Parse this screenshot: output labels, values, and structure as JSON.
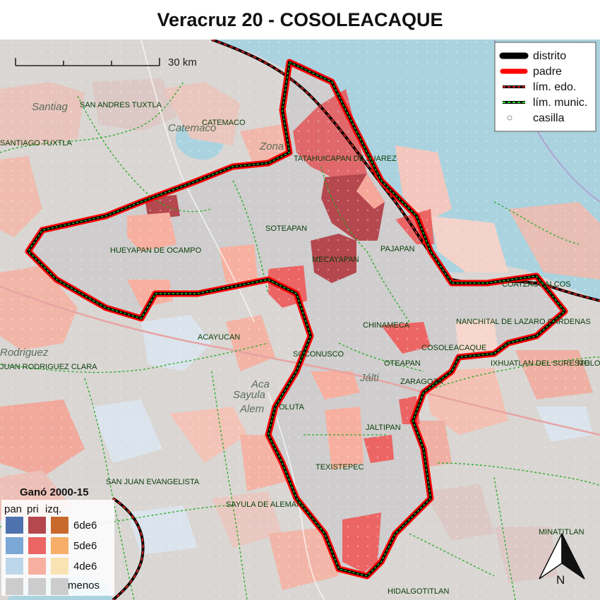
{
  "title": "Veracruz 20 - COSOLEACAQUE",
  "scale_bar": {
    "label": "30 km"
  },
  "legend": {
    "items": [
      {
        "label": "distrito",
        "color": "#000000"
      },
      {
        "label": "padre",
        "color": "#ff0000"
      },
      {
        "label": "lím. edo.",
        "color": "#cc0000"
      },
      {
        "label": "lím. munic.",
        "color": "#22cc22"
      },
      {
        "label": "casilla",
        "color": "#ffffff"
      }
    ]
  },
  "win_legend": {
    "title": "Ganó 2000-15",
    "columns": [
      "pan",
      "pri",
      "izq."
    ],
    "rows": [
      {
        "label": "6de6",
        "colors": [
          "#4d72ae",
          "#b5474e",
          "#c86a2c"
        ]
      },
      {
        "label": "5de6",
        "colors": [
          "#7aa7d6",
          "#ec6565",
          "#f6ae68"
        ]
      },
      {
        "label": "4de6",
        "colors": [
          "#bdd7ea",
          "#f7b0a0",
          "#fae3b2"
        ]
      },
      {
        "label": "menos",
        "colors": [
          "#cccccc",
          "#cccccc",
          "#cccccc"
        ]
      }
    ]
  },
  "north_arrow": {
    "label": "N"
  },
  "places": {
    "santiago": "Santiag",
    "catemaco_town": "Catemaco",
    "zona": "Zona",
    "rodriguez": "Rodriguez",
    "acayucan_town": "Aca",
    "sayula_town": "Sayula",
    "aleman": "Alem",
    "jaltipan_town": "Jálti"
  },
  "municipalities": [
    {
      "label": "SAN ANDRES TUXTLA"
    },
    {
      "label": "CATEMACO"
    },
    {
      "label": "SANTIAGO TUXTLA"
    },
    {
      "label": "TATAHUICAPAN DE JUAREZ"
    },
    {
      "label": "SOTEAPAN"
    },
    {
      "label": "HUEYAPAN DE OCAMPO"
    },
    {
      "label": "PAJAPAN"
    },
    {
      "label": "MECAYAPAN"
    },
    {
      "label": "COATZACOALCOS"
    },
    {
      "label": "NANCHITAL DE LAZARO CARDENAS"
    },
    {
      "label": "CHINAMECA"
    },
    {
      "label": "ACAYUCAN"
    },
    {
      "label": "COSOLEACAQUE"
    },
    {
      "label": "SOCONUSCO"
    },
    {
      "label": "OTEAPAN"
    },
    {
      "label": "IXHUATLAN DEL SURESTE"
    },
    {
      "label": "MOLO"
    },
    {
      "label": "JUAN RODRIGUEZ CLARA"
    },
    {
      "label": "ZARAGOZA"
    },
    {
      "label": "OLUTA"
    },
    {
      "label": "JALTIPAN"
    },
    {
      "label": "TEXISTEPEC"
    },
    {
      "label": "SAN JUAN EVANGELISTA"
    },
    {
      "label": "SAYULA DE ALEMAN"
    },
    {
      "label": "MINATITLAN"
    },
    {
      "label": "HIDALGOTITLAN"
    }
  ]
}
